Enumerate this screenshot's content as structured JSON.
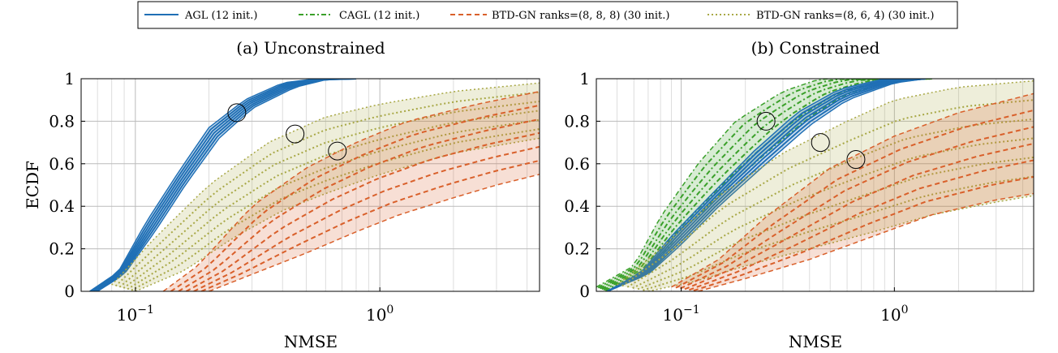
{
  "legend": {
    "items": [
      {
        "label": "AGL (12 init.)",
        "color": "#1f6fb5",
        "dash": "solid"
      },
      {
        "label": "CAGL (12 init.)",
        "color": "#3aa02a",
        "dash": "dashdot"
      },
      {
        "label": "BTD-GN ranks=(8, 8, 8) (30 init.)",
        "color": "#d9602b",
        "dash": "dashed"
      },
      {
        "label": "BTD-GN ranks=(8, 6, 4) (30 init.)",
        "color": "#a8a846",
        "dash": "dotted"
      }
    ]
  },
  "chart_data": [
    {
      "type": "line",
      "title": "(a) Unconstrained",
      "xlabel": "NMSE",
      "ylabel": "ECDF",
      "x_scale": "log",
      "xlim": [
        0.06,
        4.5
      ],
      "ylim": [
        0,
        1
      ],
      "xticks": [
        {
          "value": 0.1,
          "label": "10^{-1}"
        },
        {
          "value": 1,
          "label": "10^{0}"
        }
      ],
      "yticks": [
        "0",
        "0.2",
        "0.4",
        "0.6",
        "0.8",
        "1"
      ],
      "grid": true,
      "series": [
        {
          "name": "AGL (12 init.)",
          "band": {
            "lower": [
              [
                0.07,
                0
              ],
              [
                0.09,
                0.08
              ],
              [
                0.12,
                0.28
              ],
              [
                0.16,
                0.5
              ],
              [
                0.22,
                0.72
              ],
              [
                0.3,
                0.86
              ],
              [
                0.45,
                0.96
              ],
              [
                0.6,
                0.995
              ],
              [
                0.8,
                1
              ]
            ],
            "upper": [
              [
                0.065,
                0
              ],
              [
                0.085,
                0.09
              ],
              [
                0.11,
                0.32
              ],
              [
                0.15,
                0.56
              ],
              [
                0.2,
                0.77
              ],
              [
                0.28,
                0.9
              ],
              [
                0.4,
                0.98
              ],
              [
                0.55,
                1
              ],
              [
                0.8,
                1
              ]
            ]
          }
        },
        {
          "name": "BTD-GN ranks=(8, 6, 4) (30 init.)",
          "band": {
            "lower": [
              [
                0.1,
                0
              ],
              [
                0.16,
                0.1
              ],
              [
                0.25,
                0.25
              ],
              [
                0.4,
                0.38
              ],
              [
                0.6,
                0.46
              ],
              [
                1,
                0.55
              ],
              [
                2,
                0.65
              ],
              [
                4.5,
                0.72
              ]
            ],
            "upper": [
              [
                0.08,
                0.03
              ],
              [
                0.12,
                0.25
              ],
              [
                0.2,
                0.5
              ],
              [
                0.35,
                0.7
              ],
              [
                0.6,
                0.82
              ],
              [
                1,
                0.88
              ],
              [
                2,
                0.94
              ],
              [
                4.5,
                0.98
              ]
            ]
          }
        },
        {
          "name": "BTD-GN ranks=(8, 8, 8) (30 init.)",
          "band": {
            "lower": [
              [
                0.2,
                0
              ],
              [
                0.3,
                0.08
              ],
              [
                0.5,
                0.18
              ],
              [
                0.8,
                0.28
              ],
              [
                1.2,
                0.36
              ],
              [
                2,
                0.44
              ],
              [
                3,
                0.5
              ],
              [
                4.5,
                0.55
              ]
            ],
            "upper": [
              [
                0.13,
                0
              ],
              [
                0.18,
                0.12
              ],
              [
                0.3,
                0.4
              ],
              [
                0.5,
                0.58
              ],
              [
                0.8,
                0.7
              ],
              [
                1.3,
                0.8
              ],
              [
                2.5,
                0.88
              ],
              [
                4.5,
                0.94
              ]
            ]
          }
        }
      ],
      "zoom_markers": [
        {
          "x": 0.26,
          "y": 0.84
        },
        {
          "x": 0.45,
          "y": 0.74
        },
        {
          "x": 0.67,
          "y": 0.66
        }
      ]
    },
    {
      "type": "line",
      "title": "(b) Constrained",
      "xlabel": "NMSE",
      "ylabel": "",
      "x_scale": "log",
      "xlim": [
        0.04,
        4.5
      ],
      "ylim": [
        0,
        1
      ],
      "xticks": [
        {
          "value": 0.1,
          "label": "10^{-1}"
        },
        {
          "value": 1,
          "label": "10^{0}"
        }
      ],
      "yticks": [
        "0",
        "0.2",
        "0.4",
        "0.6",
        "0.8",
        "1"
      ],
      "grid": true,
      "series": [
        {
          "name": "CAGL (12 init.)",
          "band": {
            "lower": [
              [
                0.045,
                0
              ],
              [
                0.07,
                0.1
              ],
              [
                0.1,
                0.28
              ],
              [
                0.15,
                0.45
              ],
              [
                0.25,
                0.65
              ],
              [
                0.4,
                0.82
              ],
              [
                0.6,
                0.93
              ],
              [
                1,
                0.99
              ],
              [
                1.5,
                1
              ]
            ],
            "upper": [
              [
                0.04,
                0.02
              ],
              [
                0.06,
                0.12
              ],
              [
                0.08,
                0.35
              ],
              [
                0.12,
                0.6
              ],
              [
                0.18,
                0.8
              ],
              [
                0.3,
                0.94
              ],
              [
                0.45,
                1
              ],
              [
                1.5,
                1
              ]
            ]
          }
        },
        {
          "name": "AGL (12 init.)",
          "band": {
            "lower": [
              [
                0.045,
                0
              ],
              [
                0.07,
                0.08
              ],
              [
                0.1,
                0.22
              ],
              [
                0.15,
                0.4
              ],
              [
                0.25,
                0.6
              ],
              [
                0.4,
                0.78
              ],
              [
                0.6,
                0.9
              ],
              [
                1,
                0.98
              ],
              [
                1.4,
                1
              ]
            ],
            "upper": [
              [
                0.045,
                0
              ],
              [
                0.065,
                0.09
              ],
              [
                0.09,
                0.26
              ],
              [
                0.14,
                0.46
              ],
              [
                0.22,
                0.66
              ],
              [
                0.35,
                0.84
              ],
              [
                0.55,
                0.95
              ],
              [
                0.9,
                1
              ],
              [
                1.4,
                1
              ]
            ]
          }
        },
        {
          "name": "BTD-GN ranks=(8, 6, 4) (30 init.)",
          "band": {
            "lower": [
              [
                0.07,
                0
              ],
              [
                0.12,
                0.05
              ],
              [
                0.2,
                0.12
              ],
              [
                0.4,
                0.2
              ],
              [
                0.8,
                0.28
              ],
              [
                1.5,
                0.36
              ],
              [
                3,
                0.42
              ],
              [
                4.5,
                0.45
              ]
            ],
            "upper": [
              [
                0.05,
                0.03
              ],
              [
                0.08,
                0.2
              ],
              [
                0.15,
                0.45
              ],
              [
                0.3,
                0.65
              ],
              [
                0.6,
                0.8
              ],
              [
                1,
                0.9
              ],
              [
                2,
                0.96
              ],
              [
                4.5,
                0.99
              ]
            ]
          }
        },
        {
          "name": "BTD-GN ranks=(8, 8, 8) (30 init.)",
          "band": {
            "lower": [
              [
                0.12,
                0
              ],
              [
                0.2,
                0.06
              ],
              [
                0.4,
                0.15
              ],
              [
                0.8,
                0.26
              ],
              [
                1.5,
                0.36
              ],
              [
                3,
                0.43
              ],
              [
                4.5,
                0.46
              ]
            ],
            "upper": [
              [
                0.09,
                0.02
              ],
              [
                0.15,
                0.15
              ],
              [
                0.25,
                0.35
              ],
              [
                0.5,
                0.58
              ],
              [
                1,
                0.73
              ],
              [
                2,
                0.84
              ],
              [
                4.5,
                0.93
              ]
            ]
          }
        }
      ],
      "zoom_markers": [
        {
          "x": 0.25,
          "y": 0.8
        },
        {
          "x": 0.45,
          "y": 0.7
        },
        {
          "x": 0.66,
          "y": 0.62
        }
      ]
    }
  ]
}
